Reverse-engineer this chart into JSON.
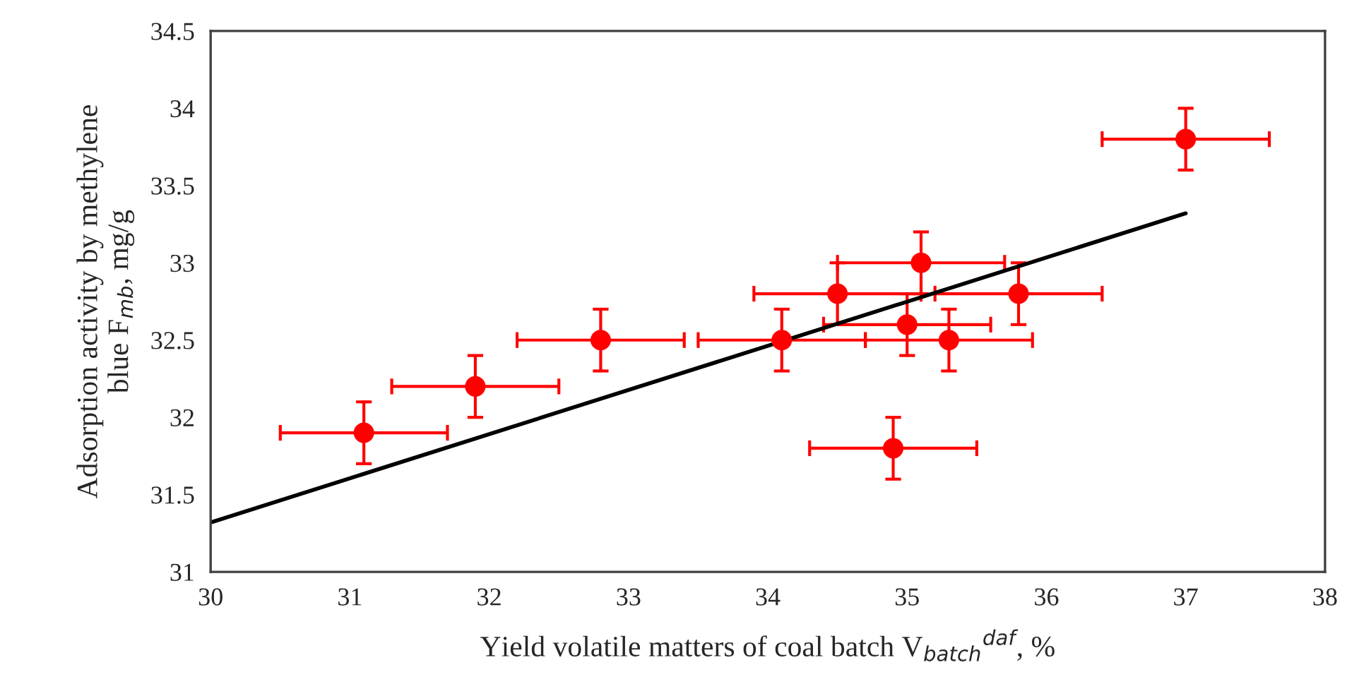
{
  "chart_data": {
    "type": "scatter",
    "xlabel": "Yield volatile matters of coal batch V$_{batch}$$^{daf}$, %",
    "ylabel": "Adsorption activity by methylene\nblue F$_{mb}$, mg/g",
    "series": [
      {
        "color": "#ff0000",
        "x": [
          31.1,
          31.9,
          32.8,
          34.1,
          34.5,
          35.1,
          35.0,
          35.3,
          35.8,
          34.9,
          37.0
        ],
        "values": [
          31.9,
          32.2,
          32.5,
          32.5,
          32.8,
          33.0,
          32.6,
          32.5,
          32.8,
          31.8,
          33.8
        ],
        "errors": [
          0.2,
          0.2,
          0.2,
          0.2,
          0.2,
          0.2,
          0.2,
          0.2,
          0.2,
          0.2,
          0.2
        ],
        "xerrors": [
          0.6,
          0.6,
          0.6,
          0.6,
          0.6,
          0.6,
          0.6,
          0.6,
          0.6,
          0.6,
          0.6
        ],
        "marker": "circle"
      },
      {
        "type": "line",
        "color": "#000000",
        "x": [
          30,
          37
        ],
        "values": [
          31.32,
          33.32
        ],
        "line_style": "solid"
      }
    ],
    "xlim": [
      30,
      38
    ],
    "xticks": [
      30,
      31,
      32,
      33,
      34,
      35,
      36,
      37,
      38
    ],
    "ylim": [
      31,
      34.5
    ],
    "yticks": [
      31,
      31.5,
      32,
      32.5,
      33,
      33.5,
      34,
      34.5
    ],
    "grid": false
  }
}
